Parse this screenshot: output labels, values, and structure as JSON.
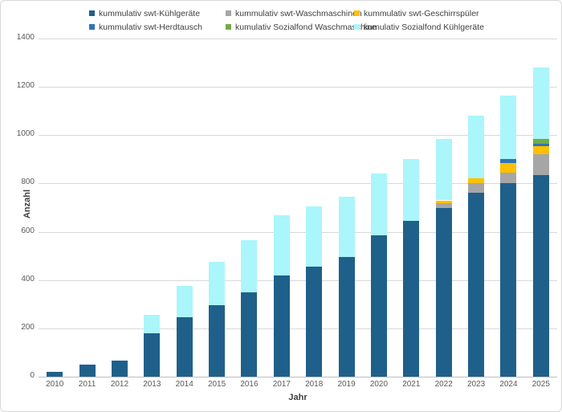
{
  "chart_data": {
    "type": "bar",
    "stacked": true,
    "title": "",
    "xlabel": "Jahr",
    "ylabel": "Anzahl",
    "ylim": [
      0,
      1400
    ],
    "yticks": [
      0,
      200,
      400,
      600,
      800,
      1000,
      1200,
      1400
    ],
    "grid": "horizontal",
    "legend_position": "top",
    "categories": [
      "2010",
      "2011",
      "2012",
      "2013",
      "2014",
      "2015",
      "2016",
      "2017",
      "2018",
      "2019",
      "2020",
      "2021",
      "2022",
      "2023",
      "2024",
      "2025"
    ],
    "series": [
      {
        "name": "kummulativ swt-Kühlgeräte",
        "color": "#1F608A",
        "values": [
          20,
          50,
          65,
          180,
          245,
          295,
          350,
          420,
          455,
          495,
          585,
          645,
          700,
          760,
          800,
          835
        ]
      },
      {
        "name": "kummulativ swt-Waschmaschinen",
        "color": "#A6A6A6",
        "values": [
          0,
          0,
          0,
          0,
          0,
          0,
          0,
          0,
          0,
          0,
          0,
          0,
          20,
          40,
          45,
          85
        ]
      },
      {
        "name": "kummulativ swt-Geschirrspüler",
        "color": "#FFC000",
        "values": [
          0,
          0,
          0,
          0,
          0,
          0,
          0,
          0,
          0,
          0,
          0,
          0,
          10,
          20,
          40,
          35
        ]
      },
      {
        "name": "kummulativ swt-Herdtausch",
        "color": "#2E75B6",
        "values": [
          0,
          0,
          0,
          0,
          0,
          0,
          0,
          0,
          0,
          0,
          0,
          0,
          0,
          0,
          15,
          10
        ]
      },
      {
        "name": "kumulativ Sozialfond Waschmaschine",
        "color": "#70AD47",
        "values": [
          0,
          0,
          0,
          0,
          0,
          0,
          0,
          0,
          0,
          0,
          0,
          0,
          0,
          0,
          0,
          20
        ]
      },
      {
        "name": "kumulativ Sozialfond Kühlgeräte",
        "color": "#AAF6FB",
        "values": [
          0,
          0,
          0,
          75,
          130,
          180,
          215,
          250,
          250,
          250,
          255,
          255,
          255,
          260,
          265,
          295
        ]
      }
    ]
  },
  "colors": {
    "background": "#FFFFFF",
    "gridline": "#D9D9D9",
    "axis_line": "#BFBFBF",
    "tick_text": "#595959",
    "legend_text": "#404040"
  }
}
